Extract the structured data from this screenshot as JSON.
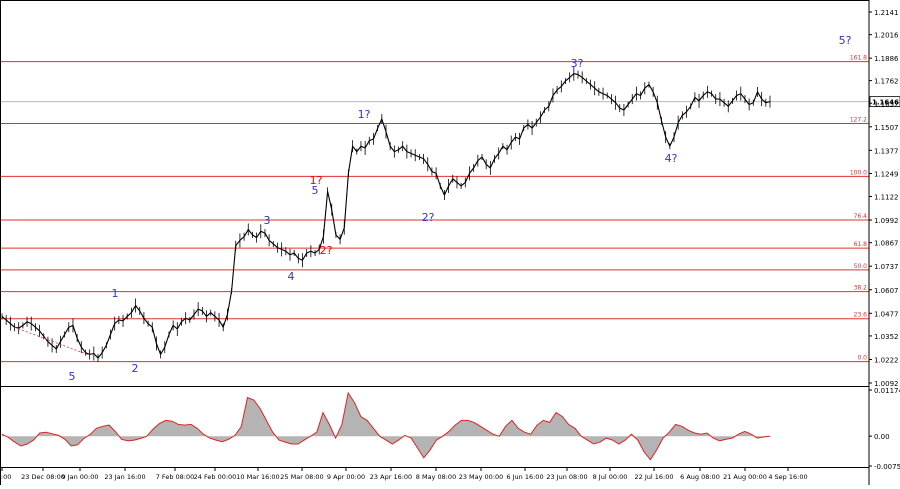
{
  "chart_data": [
    {
      "type": "line",
      "title": "",
      "symbol_current_price": "1.1646",
      "y_ticks": [
        "1.2141",
        "1.2016",
        "1.1886",
        "1.1762",
        "1.1637",
        "1.1507",
        "1.1377",
        "1.1249",
        "1.1122",
        "1.0992",
        "1.0867",
        "1.0737",
        "1.0607",
        "1.0477",
        "1.0352",
        "1.0222",
        "1.0092"
      ],
      "ylim": [
        1.0092,
        1.2141
      ],
      "x_ticks": [
        "16:00",
        "23 Dec 08:00",
        "9 Jan 00:00",
        "23 Jan 16:00",
        "7 Feb 08:00",
        "24 Feb 00:00",
        "10 Mar 16:00",
        "25 Mar 08:00",
        "9 Apr 00:00",
        "23 Apr 16:00",
        "8 May 08:00",
        "23 May 00:00",
        "6 Jun 16:00",
        "23 Jun 08:00",
        "8 Jul 00:00",
        "22 Jul 16:00",
        "6 Aug 08:00",
        "21 Aug 00:00",
        "4 Sep 16:00"
      ],
      "fib_levels": [
        {
          "label": "161.8",
          "value": 1.1867
        },
        {
          "label": "127.2",
          "value": 1.1525
        },
        {
          "label": "100.0",
          "value": 1.1233
        },
        {
          "label": "76.4",
          "value": 1.0992
        },
        {
          "label": "61.8",
          "value": 1.0837
        },
        {
          "label": "50.0",
          "value": 1.0717
        },
        {
          "label": "38.2",
          "value": 1.0597
        },
        {
          "label": "23.6",
          "value": 1.0447
        },
        {
          "label": "0.0",
          "value": 1.021
        }
      ],
      "current_price_line": 1.1646,
      "wave_labels": [
        {
          "text": "1",
          "color": "#3333cc"
        },
        {
          "text": "2",
          "color": "#3333cc"
        },
        {
          "text": "3",
          "color": "#3333cc"
        },
        {
          "text": "4",
          "color": "#3333cc"
        },
        {
          "text": "5",
          "color": "#3333cc"
        },
        {
          "text": "5",
          "color": "#3333cc"
        },
        {
          "text": "1?",
          "color": "#ee0000"
        },
        {
          "text": "2?",
          "color": "#ee0000"
        },
        {
          "text": "1?",
          "color": "#3333cc"
        },
        {
          "text": "2?",
          "color": "#3333cc"
        },
        {
          "text": "3?",
          "color": "#3333cc"
        },
        {
          "text": "4?",
          "color": "#3333cc"
        },
        {
          "text": "5?",
          "color": "#3333cc"
        }
      ],
      "series": [
        {
          "values": [
            1.046,
            1.044,
            1.042,
            1.04,
            1.0395,
            1.041,
            1.043,
            1.042,
            1.04,
            1.038,
            1.035,
            1.032,
            1.03,
            1.028,
            1.032,
            1.036,
            1.04,
            1.041,
            1.034,
            1.029,
            1.026,
            1.025,
            1.0255,
            1.023,
            1.026,
            1.03,
            1.036,
            1.042,
            1.044,
            1.0435,
            1.046,
            1.048,
            1.052,
            1.049,
            1.045,
            1.042,
            1.04,
            1.031,
            1.025,
            1.029,
            1.036,
            1.041,
            1.039,
            1.043,
            1.045,
            1.044,
            1.047,
            1.05,
            1.049,
            1.046,
            1.048,
            1.046,
            1.044,
            1.04,
            1.047,
            1.06,
            1.085,
            1.088,
            1.09,
            1.094,
            1.091,
            1.0895,
            1.093,
            1.092,
            1.088,
            1.086,
            1.084,
            1.083,
            1.082,
            1.08,
            1.081,
            1.078,
            1.077,
            1.081,
            1.082,
            1.081,
            1.083,
            1.09,
            1.115,
            1.105,
            1.091,
            1.0885,
            1.095,
            1.125,
            1.14,
            1.137,
            1.14,
            1.139,
            1.143,
            1.144,
            1.15,
            1.155,
            1.148,
            1.14,
            1.137,
            1.138,
            1.14,
            1.137,
            1.136,
            1.135,
            1.134,
            1.133,
            1.13,
            1.126,
            1.125,
            1.118,
            1.113,
            1.118,
            1.122,
            1.12,
            1.118,
            1.12,
            1.125,
            1.128,
            1.132,
            1.134,
            1.13,
            1.128,
            1.133,
            1.136,
            1.14,
            1.138,
            1.142,
            1.145,
            1.144,
            1.15,
            1.152,
            1.15,
            1.153,
            1.156,
            1.16,
            1.162,
            1.168,
            1.171,
            1.173,
            1.176,
            1.178,
            1.18,
            1.1795,
            1.178,
            1.176,
            1.174,
            1.172,
            1.17,
            1.169,
            1.168,
            1.166,
            1.164,
            1.161,
            1.16,
            1.163,
            1.166,
            1.169,
            1.168,
            1.172,
            1.174,
            1.17,
            1.164,
            1.154,
            1.145,
            1.14,
            1.145,
            1.153,
            1.157,
            1.159,
            1.162,
            1.167,
            1.165,
            1.168,
            1.17,
            1.169,
            1.166,
            1.166,
            1.164,
            1.162,
            1.165,
            1.168,
            1.169,
            1.166,
            1.163,
            1.164,
            1.17,
            1.166,
            1.164,
            1.1646
          ]
        }
      ]
    },
    {
      "type": "area",
      "title": "",
      "y_ticks": [
        "0.01174",
        "0.00",
        "-0.00759"
      ],
      "ylim": [
        -0.00759,
        0.01174
      ],
      "series": [
        {
          "values": [
            0.0005,
            -0.0003,
            -0.0015,
            -0.0025,
            -0.002,
            -0.001,
            0.0008,
            0.001,
            0.0006,
            0.0002,
            -0.0008,
            -0.0025,
            -0.0022,
            -0.0006,
            0.0004,
            0.002,
            0.0025,
            0.0028,
            0.0012,
            -0.0008,
            -0.0012,
            -0.001,
            -0.0006,
            0.0,
            0.0018,
            0.0032,
            0.004,
            0.0038,
            0.003,
            0.0028,
            0.003,
            0.002,
            0.0005,
            -0.0005,
            -0.001,
            -0.0014,
            -0.0008,
            0.0002,
            0.0024,
            0.0098,
            0.0092,
            0.007,
            0.004,
            0.001,
            -0.001,
            -0.0015,
            -0.002,
            -0.002,
            -0.001,
            0.0,
            0.001,
            0.006,
            0.003,
            -0.0005,
            0.003,
            0.011,
            0.0085,
            0.005,
            0.004,
            0.002,
            0.0,
            -0.001,
            -0.002,
            -0.001,
            0.0002,
            -0.0005,
            -0.003,
            -0.0055,
            -0.0035,
            -0.001,
            0.0,
            0.0012,
            0.0028,
            0.004,
            0.004,
            0.0035,
            0.0025,
            0.0015,
            0.0005,
            0.0,
            0.0025,
            0.004,
            0.002,
            0.001,
            0.0005,
            0.0028,
            0.004,
            0.0035,
            0.006,
            0.005,
            0.003,
            0.002,
            0.0,
            -0.001,
            -0.002,
            -0.0015,
            -0.0005,
            -0.001,
            -0.002,
            -0.001,
            0.0005,
            -0.001,
            -0.004,
            -0.006,
            -0.0035,
            -0.0005,
            0.001,
            0.003,
            0.0025,
            0.0015,
            0.0008,
            0.0005,
            0.0008,
            -0.0005,
            -0.0012,
            -0.0008,
            -0.0005,
            0.0005,
            0.0012,
            0.0005,
            -0.0005,
            -0.0002,
            0.0
          ]
        }
      ]
    }
  ]
}
